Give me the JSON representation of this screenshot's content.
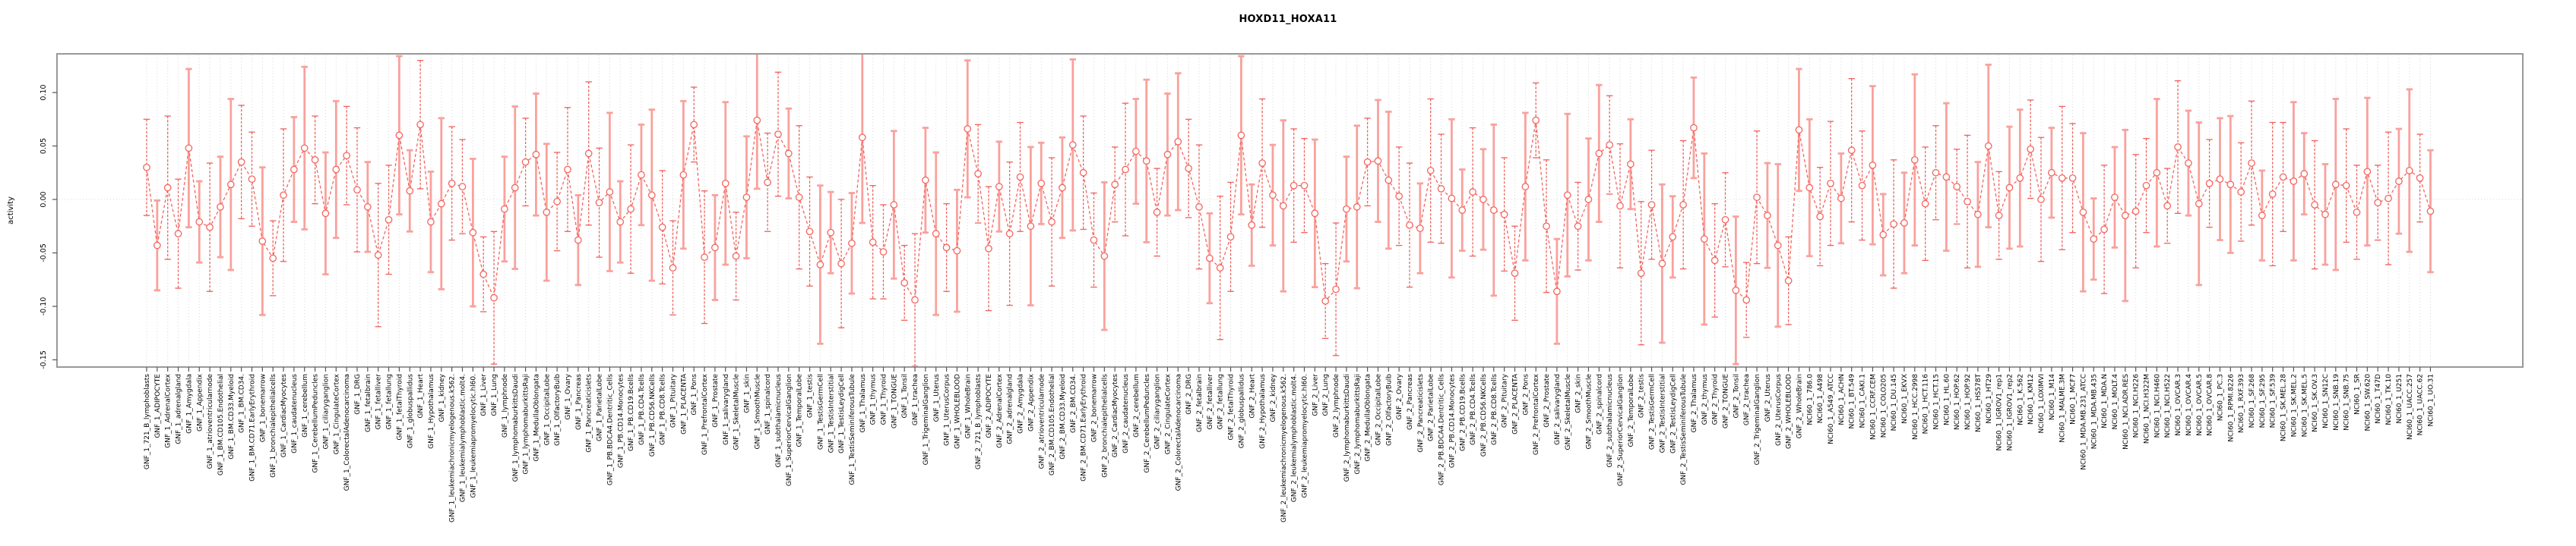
{
  "title": "HOXD11_HOXA11",
  "chart_data": {
    "type": "scatter",
    "title": "HOXD11_HOXA11",
    "xlabel": "",
    "ylabel": "activity",
    "ylim": [
      -0.15,
      0.13
    ],
    "yticks": [
      0.1,
      0.05,
      0.0,
      -0.05,
      -0.1,
      -0.15
    ],
    "ytick_labels": [
      "0.10",
      "0.05",
      "0.00",
      "-0.05",
      "-0.10",
      "-0.15"
    ],
    "grid": "vertical dotted gridline per category, dotted horizontal line at zero",
    "legend": "none",
    "marker": "open-circle with vertical error bars and caps, dashed connecting line",
    "colors": {
      "series_line": "#f4655f",
      "marker_stroke": "#f4655f",
      "errorbar_solid": "#f9a19c",
      "errorbar_dashed": "#ef615c",
      "gridline": "#d8d8d8",
      "box_border": "#999999",
      "tick": "#555555",
      "text": "#000000"
    },
    "categories": [
      "GNF_1_721_B_lymphoblasts",
      "GNF_1_ADIPOCYTE",
      "GNF_1_AdrenalCortex",
      "GNF_1_adrenalgland",
      "GNF_1_Amygdala",
      "GNF_1_Appendix",
      "GNF_1_atrioventricularnode",
      "GNF_1_BM.CD105.Endothelial",
      "GNF_1_BM.CD33.Myeloid",
      "GNF_1_BM.CD34.",
      "GNF_1_BM.CD71.EarlyErythroid",
      "GNF_1_bonemarrow",
      "GNF_1_bronchialepithelialcells",
      "GNF_1_CardiacMyocytes",
      "GNF_1_caudatenucleus",
      "GNF_1_cerebellum",
      "GNF_1_CerebellumPeduncles",
      "GNF_1_ciliaryganglion",
      "GNF_1_CingulateCortex",
      "GNF_1_ColorectalAdenocarcinoma",
      "GNF_1_DRG",
      "GNF_1_fetalbrain",
      "GNF_1_fetalliver",
      "GNF_1_fetallung",
      "GNF_1_fetalThyroid",
      "GNF_1_globuspallidus",
      "GNF_1_Heart",
      "GNF_1_Hypothalamus",
      "GNF_1_kidney",
      "GNF_1_leukemiachronicmyelogenous.k562.",
      "GNF_1_leukemialymphoblastic.molt4.",
      "GNF_1_leukemiapromyelocytic.hl60.",
      "GNF_1_Liver",
      "GNF_1_Lung",
      "GNF_1_lymphnode",
      "GNF_1_lymphomaburkittsDaudi",
      "GNF_1_lymphomaburkittsRaji",
      "GNF_1_MedullaOblongata",
      "GNF_1_OccipitalLobe",
      "GNF_1_OlfactoryBulb",
      "GNF_1_Ovary",
      "GNF_1_Pancreas",
      "GNF_1_Pancreaticislets",
      "GNF_1_ParietalLobe",
      "GNF_1_PB.BDCA4.Dentritic_Cells",
      "GNF_1_PB.CD14.Monocytes",
      "GNF_1_PB.CD19.Bcells",
      "GNF_1_PB.CD4.Tcells",
      "GNF_1_PB.CD56.NKCells",
      "GNF_1_PB.CD8.Tcells",
      "GNF_1_Pituitary",
      "GNF_1_PLACENTA",
      "GNF_1_Pons",
      "GNF_1_PrefrontalCortex",
      "GNF_1_Prostate",
      "GNF_1_salivarygland",
      "GNF_1_SkeletalMuscle",
      "GNF_1_skin",
      "GNF_1_SmoothMuscle",
      "GNF_1_spinalcord",
      "GNF_1_subthalamicnucleus",
      "GNF_1_SuperiorCervicalGanglion",
      "GNF_1_TemporalLobe",
      "GNF_1_testis",
      "GNF_1_TestisGermCell",
      "GNF_1_TestisInterstitial",
      "GNF_1_TestisLeydigCell",
      "GNF_1_TestisSeminiferousTubule",
      "GNF_1_Thalamus",
      "GNF_1_thymus",
      "GNF_1_Thyroid",
      "GNF_1_TONGUE",
      "GNF_1_Tonsil",
      "GNF_1_trachea",
      "GNF_1_TrigeminalGanglion",
      "GNF_1_Uterus",
      "GNF_1_UterusCorpus",
      "GNF_1_WHOLEBLOOD",
      "GNF_1_WholeBrain",
      "GNF_2_721_B_lymphoblasts",
      "GNF_2_ADIPOCYTE",
      "GNF_2_AdrenalCortex",
      "GNF_2_adrenalgland",
      "GNF_2_Amygdala",
      "GNF_2_Appendix",
      "GNF_2_atrioventricularnode",
      "GNF_2_BM.CD105.Endothelial",
      "GNF_2_BM.CD33.Myeloid",
      "GNF_2_BM.CD34.",
      "GNF_2_BM.CD71.EarlyErythroid",
      "GNF_2_bonemarrow",
      "GNF_2_bronchialepithelialcells",
      "GNF_2_CardiacMyocytes",
      "GNF_2_caudatenucleus",
      "GNF_2_cerebellum",
      "GNF_2_CerebellumPeduncles",
      "GNF_2_ciliaryganglion",
      "GNF_2_CingulateCortex",
      "GNF_2_ColorectalAdenocarcinoma",
      "GNF_2_DRG",
      "GNF_2_fetalbrain",
      "GNF_2_fetalliver",
      "GNF_2_fetallung",
      "GNF_2_fetalThyroid",
      "GNF_2_globuspallidus",
      "GNF_2_Heart",
      "GNF_2_Hypothalamus",
      "GNF_2_kidney",
      "GNF_2_leukemiachronicmyelogenous.k562.",
      "GNF_2_leukemialymphoblastic.molt4.",
      "GNF_2_leukemiapromyelocytic.hl60.",
      "GNF_2_Liver",
      "GNF_2_Lung",
      "GNF_2_lymphnode",
      "GNF_2_lymphomaburkittsDaudi",
      "GNF_2_lymphomaburkittsRaji",
      "GNF_2_MedullaOblongata",
      "GNF_2_OccipitalLobe",
      "GNF_2_OlfactoryBulb",
      "GNF_2_Ovary",
      "GNF_2_Pancreas",
      "GNF_2_Pancreaticislets",
      "GNF_2_ParietalLobe",
      "GNF_2_PB.BDCA4.Dentritic_Cells",
      "GNF_2_PB.CD14.Monocytes",
      "GNF_2_PB.CD19.Bcells",
      "GNF_2_PB.CD4.Tcells",
      "GNF_2_PB.CD56.NKCells",
      "GNF_2_PB.CD8.Tcells",
      "GNF_2_Pituitary",
      "GNF_2_PLACENTA",
      "GNF_2_Pons",
      "GNF_2_PrefrontalCortex",
      "GNF_2_Prostate",
      "GNF_2_salivarygland",
      "GNF_2_SkeletalMuscle",
      "GNF_2_skin",
      "GNF_2_SmoothMuscle",
      "GNF_2_spinalcord",
      "GNF_2_subthalamicnucleus",
      "GNF_2_SuperiorCervicalGanglion",
      "GNF_2_TemporalLobe",
      "GNF_2_testis",
      "GNF_2_TestisGermCell",
      "GNF_2_TestisInterstitial",
      "GNF_2_TestisLeydigCell",
      "GNF_2_TestisSeminiferousTubule",
      "GNF_2_Thalamus",
      "GNF_2_thymus",
      "GNF_2_Thyroid",
      "GNF_2_TONGUE",
      "GNF_2_Tonsil",
      "GNF_2_trachea",
      "GNF_2_TrigeminalGanglion",
      "GNF_2_Uterus",
      "GNF_2_UterusCorpus",
      "GNF_2_WHOLEBLOOD",
      "GNF_2_WholeBrain",
      "NCI60_1_786.0",
      "NCI60_1_A498",
      "NCI60_1_A549_ATCC",
      "NCI60_1_ACHN",
      "NCI60_1_BT.549",
      "NCI60_1_CAKI.1",
      "NCI60_1_CCRF.CEM",
      "NCI60_1_COLO205",
      "NCI60_1_DU.145",
      "NCI60_1_EKVX",
      "NCI60_1_HCC.2998",
      "NCI60_1_HCT.116",
      "NCI60_1_HCT.15",
      "NCI60_1_HL.60",
      "NCI60_1_HOP.62",
      "NCI60_1_HOP.92",
      "NCI60_1_HS578T",
      "NCI60_1_HT29",
      "NCI60_1_IGROV1_rep1",
      "NCI60_1_IGROV1_rep2",
      "NCI60_1_K.562",
      "NCI60_1_KM12",
      "NCI60_1_LOXIMVI",
      "NCI60_1_M14",
      "NCI60_1_MALME.3M",
      "NCI60_1_MCF7",
      "NCI60_1_MDA.MB.231_ATCC",
      "NCI60_1_MDA.MB.435",
      "NCI60_1_MDA.N",
      "NCI60_1_MOLT.4",
      "NCI60_1_NCI.ADR.RES",
      "NCI60_1_NCI.H226",
      "NCI60_1_NCI.H322M",
      "NCI60_1_NCI.H460",
      "NCI60_1_NCI.H522",
      "NCI60_1_OVCAR.3",
      "NCI60_1_OVCAR.4",
      "NCI60_1_OVCAR.5",
      "NCI60_1_OVCAR.8",
      "NCI60_1_PC.3",
      "NCI60_1_RPMI.8226",
      "NCI60_1_RXF.393",
      "NCI60_1_SF.268",
      "NCI60_1_SF.295",
      "NCI60_1_SF.539",
      "NCI60_1_SK.MEL.28",
      "NCI60_1_SK.MEL.2",
      "NCI60_1_SK.MEL.5",
      "NCI60_1_SK.OV.3",
      "NCI60_1_SN12C",
      "NCI60_1_SNB.19",
      "NCI60_1_SNB.75",
      "NCI60_1_SR",
      "NCI60_1_SW.620",
      "NCI60_1_T47D",
      "NCI60_1_TK.10",
      "NCI60_1_U251",
      "NCI60_1_UACC.257",
      "NCI60_1_UACC.62",
      "NCI60_1_UO.31"
    ],
    "values": [
      0.03,
      -0.043,
      0.011,
      -0.032,
      0.048,
      -0.021,
      -0.026,
      -0.007,
      0.014,
      0.035,
      0.019,
      -0.039,
      -0.055,
      0.004,
      0.028,
      0.048,
      0.037,
      -0.013,
      0.028,
      0.041,
      0.009,
      -0.007,
      -0.052,
      -0.019,
      0.06,
      0.008,
      0.07,
      -0.021,
      -0.004,
      0.015,
      0.012,
      -0.031,
      -0.07,
      -0.092,
      -0.009,
      0.011,
      0.035,
      0.042,
      -0.012,
      -0.002,
      0.028,
      -0.038,
      0.043,
      -0.003,
      0.007,
      -0.021,
      -0.009,
      0.023,
      0.004,
      -0.026,
      -0.064,
      0.023,
      0.07,
      -0.054,
      -0.045,
      0.015,
      -0.053,
      0.002,
      0.074,
      0.016,
      0.061,
      0.043,
      0.002,
      -0.03,
      -0.061,
      -0.031,
      -0.06,
      -0.041,
      0.058,
      -0.04,
      -0.049,
      -0.005,
      -0.078,
      -0.094,
      0.018,
      -0.032,
      -0.045,
      -0.048,
      0.066,
      0.024,
      -0.046,
      0.012,
      -0.032,
      0.021,
      -0.025,
      0.015,
      -0.021,
      0.011,
      0.051,
      0.025,
      -0.038,
      -0.053,
      0.014,
      0.028,
      0.045,
      0.036,
      -0.012,
      0.042,
      0.054,
      0.029,
      -0.007,
      -0.055,
      -0.064,
      -0.035,
      0.06,
      -0.024,
      0.034,
      0.004,
      -0.006,
      0.013,
      0.013,
      -0.013,
      -0.095,
      -0.084,
      -0.009,
      -0.007,
      0.035,
      0.036,
      0.018,
      0.003,
      -0.024,
      -0.027,
      0.027,
      0.01,
      0.001,
      -0.01,
      0.007,
      0.0,
      -0.01,
      -0.014,
      -0.069,
      0.012,
      0.074,
      -0.025,
      -0.086,
      0.004,
      -0.025,
      0.0,
      0.043,
      0.051,
      -0.006,
      0.033,
      -0.069,
      -0.005,
      -0.06,
      -0.035,
      -0.005,
      0.067,
      -0.037,
      -0.057,
      -0.019,
      -0.085,
      -0.094,
      0.002,
      -0.015,
      -0.043,
      -0.076,
      0.065,
      0.011,
      -0.016,
      0.015,
      0.001,
      0.046,
      0.013,
      0.032,
      -0.033,
      -0.023,
      -0.022,
      0.037,
      -0.004,
      0.025,
      0.021,
      0.012,
      -0.002,
      -0.014,
      0.05,
      -0.015,
      0.011,
      0.02,
      0.047,
      0.0,
      0.025,
      0.02,
      0.02,
      -0.012,
      -0.037,
      -0.028,
      0.002,
      -0.015,
      -0.011,
      0.013,
      0.025,
      -0.006,
      0.049,
      0.034,
      -0.004,
      0.015,
      0.019,
      0.014,
      0.007,
      0.034,
      -0.015,
      0.005,
      0.021,
      0.017,
      0.024,
      -0.005,
      -0.014,
      0.014,
      0.013,
      -0.012,
      0.026,
      -0.003,
      0.001,
      0.017,
      0.027,
      0.02,
      -0.011
    ],
    "errors": [
      0.045,
      0.042,
      0.067,
      0.051,
      0.074,
      0.038,
      0.06,
      0.047,
      0.08,
      0.053,
      0.044,
      0.069,
      0.035,
      0.062,
      0.049,
      0.076,
      0.041,
      0.057,
      0.064,
      0.046,
      0.058,
      0.042,
      0.067,
      0.051,
      0.074,
      0.038,
      0.06,
      0.047,
      0.08,
      0.053,
      0.044,
      0.069,
      0.035,
      0.062,
      0.049,
      0.076,
      0.041,
      0.057,
      0.064,
      0.046,
      0.058,
      0.042,
      0.067,
      0.051,
      0.074,
      0.038,
      0.06,
      0.047,
      0.08,
      0.053,
      0.044,
      0.069,
      0.035,
      0.062,
      0.049,
      0.076,
      0.041,
      0.057,
      0.064,
      0.046,
      0.058,
      0.042,
      0.067,
      0.051,
      0.074,
      0.038,
      0.06,
      0.047,
      0.08,
      0.053,
      0.044,
      0.069,
      0.035,
      0.062,
      0.049,
      0.076,
      0.041,
      0.057,
      0.064,
      0.046,
      0.058,
      0.042,
      0.067,
      0.051,
      0.074,
      0.038,
      0.06,
      0.047,
      0.08,
      0.053,
      0.044,
      0.069,
      0.035,
      0.062,
      0.049,
      0.076,
      0.041,
      0.057,
      0.064,
      0.046,
      0.058,
      0.042,
      0.067,
      0.051,
      0.074,
      0.038,
      0.06,
      0.047,
      0.08,
      0.053,
      0.044,
      0.069,
      0.035,
      0.062,
      0.049,
      0.076,
      0.041,
      0.057,
      0.064,
      0.046,
      0.058,
      0.042,
      0.067,
      0.051,
      0.074,
      0.038,
      0.06,
      0.047,
      0.08,
      0.053,
      0.044,
      0.069,
      0.035,
      0.062,
      0.049,
      0.076,
      0.041,
      0.057,
      0.064,
      0.046,
      0.058,
      0.042,
      0.067,
      0.051,
      0.074,
      0.038,
      0.06,
      0.047,
      0.08,
      0.053,
      0.044,
      0.069,
      0.035,
      0.062,
      0.049,
      0.076,
      0.041,
      0.057,
      0.064,
      0.046,
      0.058,
      0.042,
      0.067,
      0.051,
      0.074,
      0.038,
      0.06,
      0.047,
      0.08,
      0.053,
      0.044,
      0.069,
      0.035,
      0.062,
      0.049,
      0.076,
      0.041,
      0.057,
      0.064,
      0.046,
      0.058,
      0.042,
      0.067,
      0.051,
      0.074,
      0.038,
      0.06,
      0.047,
      0.08,
      0.053,
      0.044,
      0.069,
      0.035,
      0.062,
      0.049,
      0.076,
      0.041,
      0.057,
      0.064,
      0.046,
      0.058,
      0.042,
      0.067,
      0.051,
      0.074,
      0.038,
      0.06,
      0.047,
      0.08,
      0.053,
      0.044,
      0.069,
      0.035,
      0.062,
      0.049,
      0.076,
      0.041,
      0.057
    ]
  }
}
